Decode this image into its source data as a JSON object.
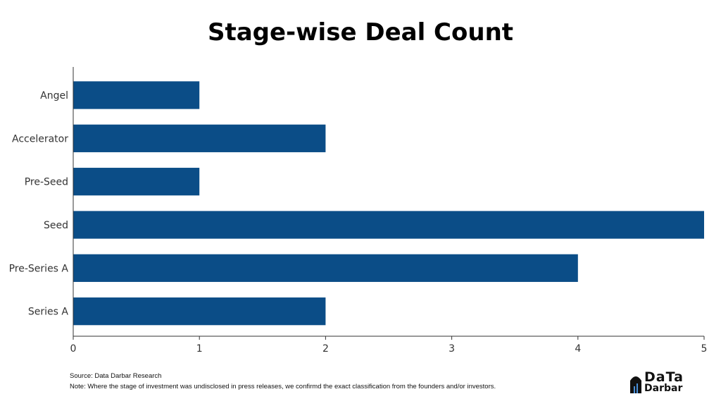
{
  "chart_data": {
    "type": "bar",
    "orientation": "horizontal",
    "title": "Stage-wise Deal Count",
    "categories": [
      "Angel",
      "Accelerator",
      "Pre-Seed",
      "Seed",
      "Pre-Series A",
      "Series A"
    ],
    "values": [
      1,
      2,
      1,
      5,
      4,
      2
    ],
    "xlabel": "",
    "ylabel": "",
    "xlim": [
      0,
      5
    ],
    "xticks": [
      "0",
      "1",
      "2",
      "3",
      "4",
      "5"
    ],
    "grid": false,
    "legend": "none",
    "bar_color": "#0b4d87"
  },
  "footnotes": {
    "source": "Source: Data Darbar Research",
    "note": "Note: Where the stage of investment was undisclosed in press releases, we confirmd the exact classification from the founders and/or investors."
  },
  "logo": {
    "line1": "DaTa",
    "line2": "Darbar"
  }
}
